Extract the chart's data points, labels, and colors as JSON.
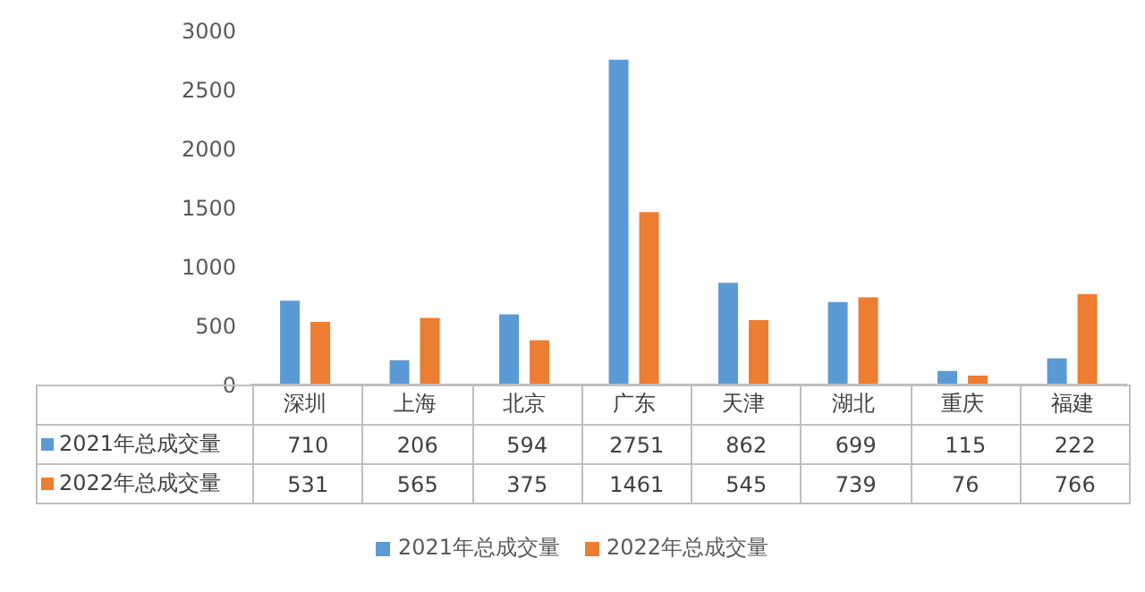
{
  "chart_data": {
    "type": "bar",
    "categories": [
      "深圳",
      "上海",
      "北京",
      "广东",
      "天津",
      "湖北",
      "重庆",
      "福建"
    ],
    "series": [
      {
        "name": "2021年总成交量",
        "color": "#5b9bd5",
        "values": [
          710,
          206,
          594,
          2751,
          862,
          699,
          115,
          222
        ]
      },
      {
        "name": "2022年总成交量",
        "color": "#ed7d31",
        "values": [
          531,
          565,
          375,
          1461,
          545,
          739,
          76,
          766
        ]
      }
    ],
    "ylim": [
      0,
      3000
    ],
    "yticks": [
      0,
      500,
      1000,
      1500,
      2000,
      2500,
      3000
    ],
    "legend": "bottom",
    "data_labels": true
  }
}
